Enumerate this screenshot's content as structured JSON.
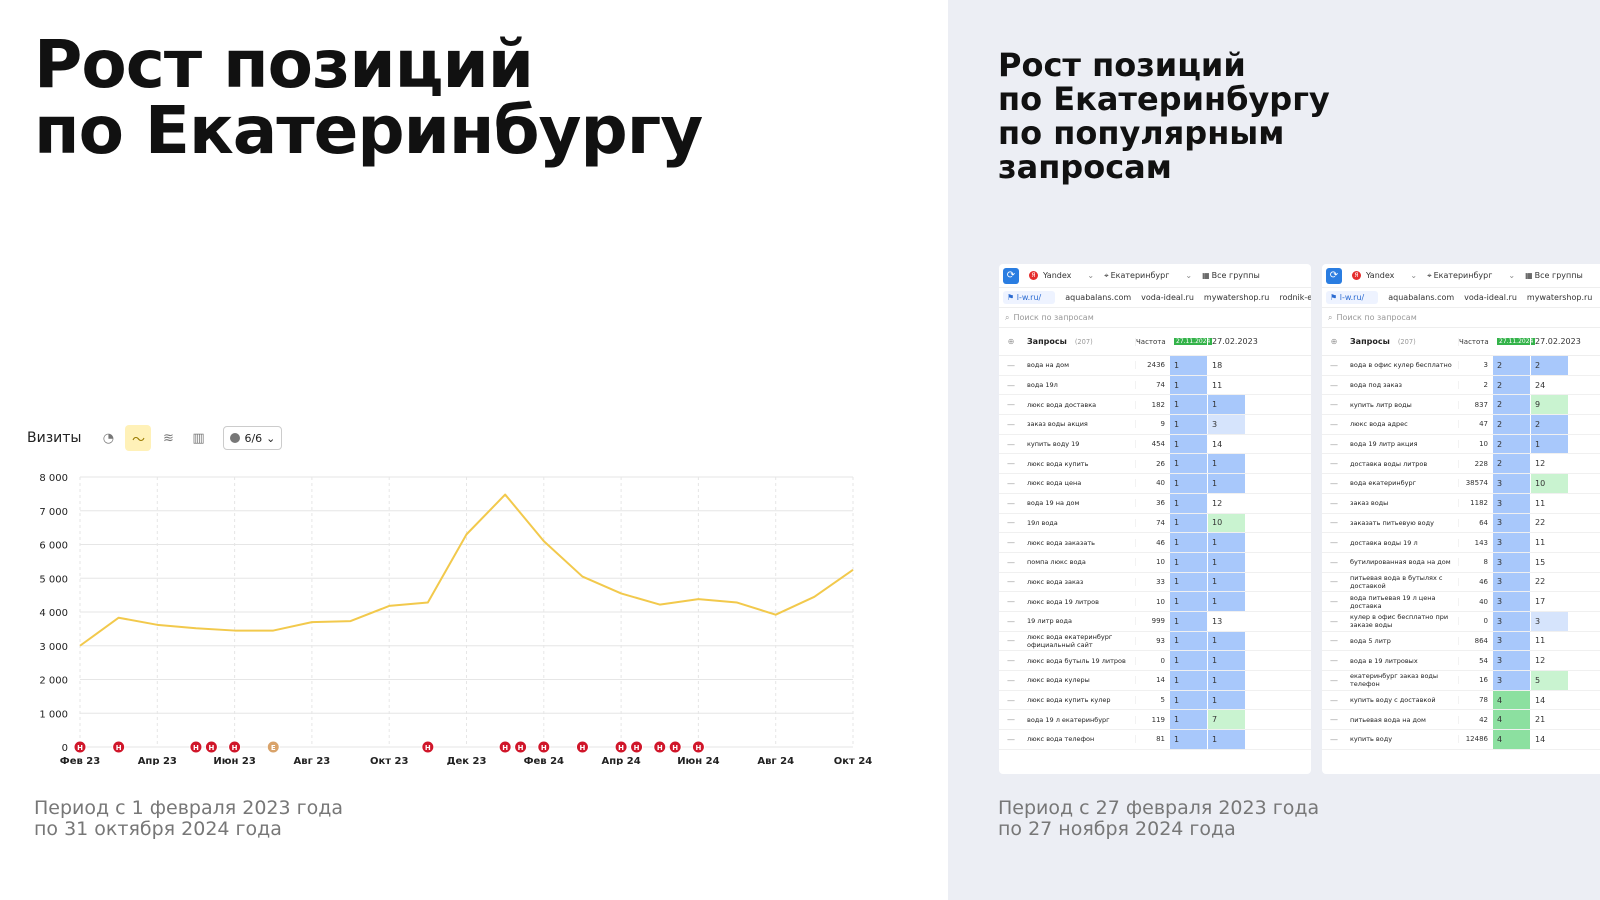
{
  "left": {
    "title_line1": "Рост позиций",
    "title_line2": "по Екатеринбургу",
    "period_line1": "Период с 1 февраля 2023 года",
    "period_line2": "по 31 октября 2024 года",
    "toolbar": {
      "label": "Визиты",
      "icons": [
        "pie-icon",
        "line-chart-icon",
        "stacked-icon",
        "bar-icon"
      ],
      "select_value": "6/6"
    }
  },
  "right": {
    "title_lines": [
      "Рост позиций",
      "по Екатеринбургу",
      "по популярным",
      "запросам"
    ],
    "period_line1": "Период с 27 февраля 2023 года",
    "period_line2": "по 27 ноября 2024 года"
  },
  "chart_data": {
    "type": "line",
    "ylabel": "",
    "xlabel": "",
    "ylim": [
      0,
      8000
    ],
    "yticks": [
      "0",
      "1 000",
      "2 000",
      "3 000",
      "4 000",
      "5 000",
      "6 000",
      "7 000",
      "8 000"
    ],
    "xticks": [
      "Фев 23",
      "Апр 23",
      "Июн 23",
      "Авг 23",
      "Окт 23",
      "Дек 23",
      "Фев 24",
      "Апр 24",
      "Июн 24",
      "Авг 24",
      "Окт 24"
    ],
    "x": [
      "2023-02",
      "2023-03",
      "2023-04",
      "2023-05",
      "2023-06",
      "2023-07",
      "2023-08",
      "2023-09",
      "2023-10",
      "2023-11",
      "2023-12",
      "2024-01",
      "2024-02",
      "2024-03",
      "2024-04",
      "2024-05",
      "2024-06",
      "2024-07",
      "2024-08",
      "2024-09",
      "2024-10"
    ],
    "series": [
      {
        "values": [
          3000,
          3830,
          3620,
          3520,
          3450,
          3450,
          3700,
          3730,
          4180,
          4280,
          6300,
          7480,
          6100,
          5050,
          4550,
          4220,
          4380,
          4280,
          3920,
          4450,
          5250
        ],
        "color": "#f2c94c"
      }
    ],
    "markers_month_index": [
      0,
      1,
      3,
      3.4,
      4,
      5,
      9,
      11,
      11.4,
      12,
      13,
      14,
      14.4,
      15,
      15.4,
      16
    ],
    "marker_letters": [
      "Н",
      "Н",
      "Н",
      "Н",
      "Н",
      "Е",
      "Н",
      "Н",
      "Н",
      "Н",
      "Н",
      "Н",
      "Н",
      "Н",
      "Н",
      "Н"
    ],
    "grid": true
  },
  "panel1": {
    "engine": "Yandex",
    "region": "Екатеринбург",
    "groups": "Все группы",
    "domains": [
      "l-w.ru/",
      "aquabalans.com",
      "voda-ideal.ru",
      "mywatershop.ru",
      "rodnik-ekb.ru"
    ],
    "search_placeholder": "Поиск по запросам",
    "header": {
      "queries": "Запросы",
      "count": "(207)",
      "freq": "Частота",
      "date_new": "27.11.2024",
      "date_old": "27.02.2023"
    },
    "rows": [
      {
        "q": "вода на дом",
        "f": "2436",
        "a": "1",
        "b": "18",
        "bc": "white"
      },
      {
        "q": "вода 19л",
        "f": "74",
        "a": "1",
        "b": "11",
        "bc": "white"
      },
      {
        "q": "люкс вода доставка",
        "f": "182",
        "a": "1",
        "b": "1",
        "bc": "blue"
      },
      {
        "q": "заказ воды акция",
        "f": "9",
        "a": "1",
        "b": "3",
        "bc": "lblue"
      },
      {
        "q": "купить воду 19",
        "f": "454",
        "a": "1",
        "b": "14",
        "bc": "white"
      },
      {
        "q": "люкс вода купить",
        "f": "26",
        "a": "1",
        "b": "1",
        "bc": "blue"
      },
      {
        "q": "люкс вода цена",
        "f": "40",
        "a": "1",
        "b": "1",
        "bc": "blue"
      },
      {
        "q": "вода 19 на дом",
        "f": "36",
        "a": "1",
        "b": "12",
        "bc": "white"
      },
      {
        "q": "19л вода",
        "f": "74",
        "a": "1",
        "b": "10",
        "bc": "green"
      },
      {
        "q": "люкс вода заказать",
        "f": "46",
        "a": "1",
        "b": "1",
        "bc": "blue"
      },
      {
        "q": "помпа люкс вода",
        "f": "10",
        "a": "1",
        "b": "1",
        "bc": "blue"
      },
      {
        "q": "люкс вода заказ",
        "f": "33",
        "a": "1",
        "b": "1",
        "bc": "blue"
      },
      {
        "q": "люкс вода 19 литров",
        "f": "10",
        "a": "1",
        "b": "1",
        "bc": "blue"
      },
      {
        "q": "19 литр вода",
        "f": "999",
        "a": "1",
        "b": "13",
        "bc": "white"
      },
      {
        "q": "люкс вода екатеринбург официальный сайт",
        "f": "93",
        "a": "1",
        "b": "1",
        "bc": "blue"
      },
      {
        "q": "люкс вода бутыль 19 литров",
        "f": "0",
        "a": "1",
        "b": "1",
        "bc": "blue"
      },
      {
        "q": "люкс вода кулеры",
        "f": "14",
        "a": "1",
        "b": "1",
        "bc": "blue"
      },
      {
        "q": "люкс вода купить кулер",
        "f": "5",
        "a": "1",
        "b": "1",
        "bc": "blue"
      },
      {
        "q": "вода 19 л екатеринбург",
        "f": "119",
        "a": "1",
        "b": "7",
        "bc": "green"
      },
      {
        "q": "люкс вода телефон",
        "f": "81",
        "a": "1",
        "b": "1",
        "bc": "blue"
      }
    ]
  },
  "panel2": {
    "engine": "Yandex",
    "region": "Екатеринбург",
    "groups": "Все группы",
    "domains": [
      "l-w.ru/",
      "aquabalans.com",
      "voda-ideal.ru",
      "mywatershop.ru",
      "rod"
    ],
    "search_placeholder": "Поиск по запросам",
    "header": {
      "queries": "Запросы",
      "count": "(207)",
      "freq": "Частота",
      "date_new": "27.11.2024",
      "date_old": "27.02.2023"
    },
    "rows": [
      {
        "q": "вода в офис кулер бесплатно",
        "f": "3",
        "a": "2",
        "ac": "blue",
        "b": "2",
        "bc": "blue"
      },
      {
        "q": "вода под заказ",
        "f": "2",
        "a": "2",
        "ac": "blue",
        "b": "24",
        "bc": "white"
      },
      {
        "q": "купить литр воды",
        "f": "837",
        "a": "2",
        "ac": "blue",
        "b": "9",
        "bc": "green"
      },
      {
        "q": "люкс вода адрес",
        "f": "47",
        "a": "2",
        "ac": "blue",
        "b": "2",
        "bc": "blue"
      },
      {
        "q": "вода 19 литр акция",
        "f": "10",
        "a": "2",
        "ac": "blue",
        "b": "1",
        "bc": "blue"
      },
      {
        "q": "доставка воды литров",
        "f": "228",
        "a": "2",
        "ac": "blue",
        "b": "12",
        "bc": "white"
      },
      {
        "q": "вода екатеринбург",
        "f": "38574",
        "a": "3",
        "ac": "blue",
        "b": "10",
        "bc": "green"
      },
      {
        "q": "заказ воды",
        "f": "1182",
        "a": "3",
        "ac": "blue",
        "b": "11",
        "bc": "white"
      },
      {
        "q": "заказать питьевую воду",
        "f": "64",
        "a": "3",
        "ac": "blue",
        "b": "22",
        "bc": "white"
      },
      {
        "q": "доставка воды 19 л",
        "f": "143",
        "a": "3",
        "ac": "blue",
        "b": "11",
        "bc": "white"
      },
      {
        "q": "бутилированная вода на дом",
        "f": "8",
        "a": "3",
        "ac": "blue",
        "b": "15",
        "bc": "white"
      },
      {
        "q": "питьевая вода в бутылях с доставкой",
        "f": "46",
        "a": "3",
        "ac": "blue",
        "b": "22",
        "bc": "white"
      },
      {
        "q": "вода питьевая 19 л цена доставка",
        "f": "40",
        "a": "3",
        "ac": "blue",
        "b": "17",
        "bc": "white"
      },
      {
        "q": "кулер в офис бесплатно при заказе воды",
        "f": "0",
        "a": "3",
        "ac": "blue",
        "b": "3",
        "bc": "lblue"
      },
      {
        "q": "вода 5 литр",
        "f": "864",
        "a": "3",
        "ac": "blue",
        "b": "11",
        "bc": "white"
      },
      {
        "q": "вода в 19 литровых",
        "f": "54",
        "a": "3",
        "ac": "blue",
        "b": "12",
        "bc": "white"
      },
      {
        "q": "екатеринбург заказ воды телефон",
        "f": "16",
        "a": "3",
        "ac": "blue",
        "b": "5",
        "bc": "green"
      },
      {
        "q": "купить воду с доставкой",
        "f": "78",
        "a": "4",
        "ac": "gradeG",
        "b": "14",
        "bc": "white"
      },
      {
        "q": "питьевая вода на дом",
        "f": "42",
        "a": "4",
        "ac": "gradeG",
        "b": "21",
        "bc": "white"
      },
      {
        "q": "купить воду",
        "f": "12486",
        "a": "4",
        "ac": "gradeG",
        "b": "14",
        "bc": "white"
      }
    ]
  }
}
